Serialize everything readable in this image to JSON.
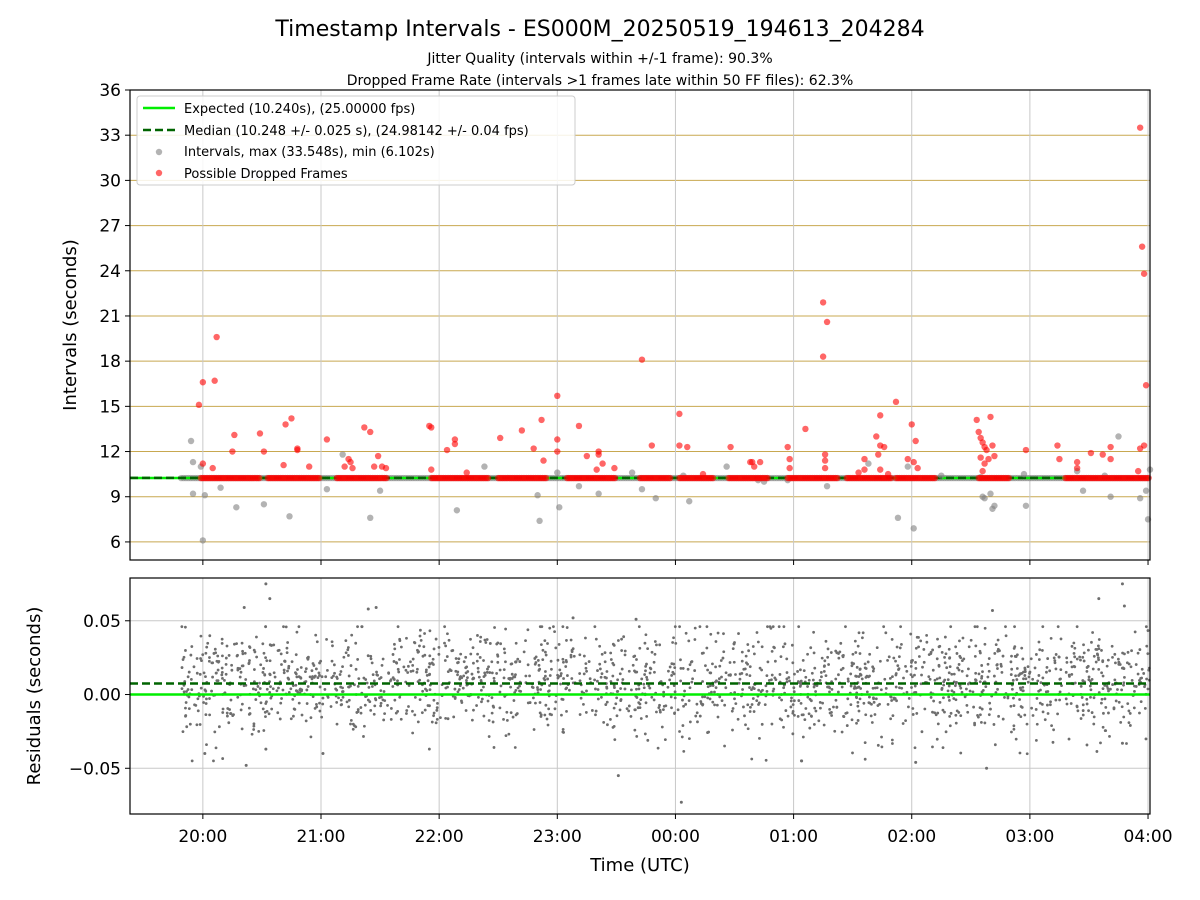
{
  "chart_data": [
    {
      "type": "scatter",
      "title": "Timestamp Intervals - ES000M_20250519_194613_204284",
      "subtitle_lines": [
        "Jitter Quality (intervals within +/-1 frame): 90.3%",
        "Dropped Frame Rate (intervals >1 frames late within 50 FF files): 62.3%"
      ],
      "ylabel": "Intervals (seconds)",
      "ylim": [
        4.8,
        36
      ],
      "yticks": [
        6,
        9,
        12,
        15,
        18,
        21,
        24,
        27,
        30,
        33,
        36
      ],
      "xlim": [
        "19:23",
        "04:01"
      ],
      "xticks": [
        "20:00",
        "21:00",
        "22:00",
        "23:00",
        "00:00",
        "01:00",
        "02:00",
        "03:00",
        "04:00"
      ],
      "grid": true,
      "legend_position": "top-left",
      "legend": [
        "Expected (10.240s), (25.00000 fps)",
        "Median (10.248 +/- 0.025 s), (24.98142 +/- 0.04 fps)",
        "Intervals, max (33.548s), min (6.102s)",
        "Possible Dropped Frames"
      ],
      "expected_interval": 10.24,
      "median_interval": 10.248,
      "series": [
        {
          "name": "Intervals, max (33.548s), min (6.102s)",
          "color": "#808080",
          "points": [
            [
              "19:54",
              12.7
            ],
            [
              "19:55",
              11.3
            ],
            [
              "19:55",
              9.2
            ],
            [
              "19:59",
              11.0
            ],
            [
              "20:00",
              6.1
            ],
            [
              "20:01",
              9.1
            ],
            [
              "20:09",
              9.6
            ],
            [
              "20:17",
              8.3
            ],
            [
              "20:31",
              8.5
            ],
            [
              "20:44",
              7.7
            ],
            [
              "21:03",
              9.5
            ],
            [
              "21:11",
              11.8
            ],
            [
              "21:25",
              7.6
            ],
            [
              "21:30",
              9.4
            ],
            [
              "22:09",
              8.1
            ],
            [
              "22:23",
              11.0
            ],
            [
              "22:50",
              9.1
            ],
            [
              "22:51",
              7.4
            ],
            [
              "23:00",
              10.6
            ],
            [
              "23:01",
              8.3
            ],
            [
              "23:11",
              9.7
            ],
            [
              "23:21",
              9.2
            ],
            [
              "23:38",
              10.6
            ],
            [
              "23:43",
              9.5
            ],
            [
              "23:50",
              8.9
            ],
            [
              "00:04",
              10.4
            ],
            [
              "00:07",
              8.7
            ],
            [
              "00:26",
              11.0
            ],
            [
              "00:42",
              10.1
            ],
            [
              "00:45",
              10.0
            ],
            [
              "00:57",
              10.1
            ],
            [
              "01:17",
              9.7
            ],
            [
              "01:38",
              11.2
            ],
            [
              "01:53",
              7.6
            ],
            [
              "01:58",
              11.0
            ],
            [
              "02:01",
              6.9
            ],
            [
              "02:15",
              10.4
            ],
            [
              "02:35",
              10.3
            ],
            [
              "02:36",
              9.0
            ],
            [
              "02:37",
              8.9
            ],
            [
              "02:40",
              9.2
            ],
            [
              "02:41",
              8.2
            ],
            [
              "02:42",
              8.4
            ],
            [
              "02:57",
              10.5
            ],
            [
              "02:58",
              8.4
            ],
            [
              "03:24",
              10.7
            ],
            [
              "03:27",
              9.4
            ],
            [
              "03:38",
              10.4
            ],
            [
              "03:41",
              9.0
            ],
            [
              "03:45",
              13.0
            ],
            [
              "03:56",
              8.9
            ],
            [
              "03:59",
              9.4
            ],
            [
              "04:00",
              7.5
            ],
            [
              "04:01",
              10.8
            ]
          ]
        },
        {
          "name": "Possible Dropped Frames",
          "color": "#ff0000",
          "points": [
            [
              "19:58",
              15.1
            ],
            [
              "20:00",
              16.6
            ],
            [
              "20:00",
              11.2
            ],
            [
              "20:06",
              16.7
            ],
            [
              "20:07",
              19.6
            ],
            [
              "20:05",
              10.9
            ],
            [
              "20:15",
              12.0
            ],
            [
              "20:16",
              13.1
            ],
            [
              "20:29",
              13.2
            ],
            [
              "20:31",
              12.0
            ],
            [
              "20:41",
              11.1
            ],
            [
              "20:42",
              13.8
            ],
            [
              "20:45",
              14.2
            ],
            [
              "20:48",
              12.1
            ],
            [
              "20:48",
              12.2
            ],
            [
              "20:54",
              11.0
            ],
            [
              "21:03",
              12.8
            ],
            [
              "21:12",
              11.0
            ],
            [
              "21:14",
              11.5
            ],
            [
              "21:15",
              11.3
            ],
            [
              "21:16",
              10.9
            ],
            [
              "21:22",
              13.6
            ],
            [
              "21:25",
              13.3
            ],
            [
              "21:27",
              11.0
            ],
            [
              "21:29",
              11.7
            ],
            [
              "21:31",
              11.0
            ],
            [
              "21:33",
              10.9
            ],
            [
              "21:55",
              13.7
            ],
            [
              "21:56",
              13.6
            ],
            [
              "21:56",
              10.8
            ],
            [
              "22:04",
              12.1
            ],
            [
              "22:08",
              12.8
            ],
            [
              "22:08",
              12.5
            ],
            [
              "22:14",
              10.6
            ],
            [
              "22:31",
              12.9
            ],
            [
              "22:42",
              13.4
            ],
            [
              "22:48",
              12.2
            ],
            [
              "22:52",
              14.1
            ],
            [
              "22:53",
              11.4
            ],
            [
              "23:00",
              15.7
            ],
            [
              "23:00",
              12.8
            ],
            [
              "23:00",
              12.0
            ],
            [
              "23:11",
              13.7
            ],
            [
              "23:15",
              11.7
            ],
            [
              "23:20",
              10.8
            ],
            [
              "23:21",
              12.0
            ],
            [
              "23:21",
              11.8
            ],
            [
              "23:23",
              11.2
            ],
            [
              "23:29",
              10.9
            ],
            [
              "23:43",
              18.1
            ],
            [
              "23:48",
              12.4
            ],
            [
              "00:02",
              14.5
            ],
            [
              "00:02",
              12.4
            ],
            [
              "00:06",
              12.3
            ],
            [
              "00:14",
              10.5
            ],
            [
              "00:28",
              12.3
            ],
            [
              "00:38",
              11.3
            ],
            [
              "00:39",
              11.3
            ],
            [
              "00:40",
              11.0
            ],
            [
              "00:43",
              11.3
            ],
            [
              "00:57",
              12.3
            ],
            [
              "00:58",
              11.5
            ],
            [
              "00:58",
              10.9
            ],
            [
              "01:06",
              13.5
            ],
            [
              "01:15",
              21.9
            ],
            [
              "01:17",
              20.6
            ],
            [
              "01:15",
              18.3
            ],
            [
              "01:16",
              11.8
            ],
            [
              "01:16",
              11.4
            ],
            [
              "01:16",
              10.9
            ],
            [
              "01:33",
              10.6
            ],
            [
              "01:36",
              11.5
            ],
            [
              "01:36",
              10.8
            ],
            [
              "01:42",
              13.0
            ],
            [
              "01:44",
              14.4
            ],
            [
              "01:44",
              12.4
            ],
            [
              "01:46",
              12.3
            ],
            [
              "01:43",
              11.8
            ],
            [
              "01:44",
              10.8
            ],
            [
              "01:48",
              10.5
            ],
            [
              "01:52",
              15.3
            ],
            [
              "01:58",
              11.5
            ],
            [
              "02:00",
              13.8
            ],
            [
              "02:01",
              11.3
            ],
            [
              "02:02",
              12.7
            ],
            [
              "02:03",
              10.9
            ],
            [
              "02:33",
              14.1
            ],
            [
              "02:34",
              13.3
            ],
            [
              "02:35",
              12.9
            ],
            [
              "02:36",
              12.6
            ],
            [
              "02:37",
              12.3
            ],
            [
              "02:38",
              12.1
            ],
            [
              "02:39",
              11.5
            ],
            [
              "02:35",
              11.6
            ],
            [
              "02:37",
              11.2
            ],
            [
              "02:36",
              10.7
            ],
            [
              "02:40",
              14.3
            ],
            [
              "02:41",
              12.4
            ],
            [
              "02:42",
              11.7
            ],
            [
              "02:58",
              12.1
            ],
            [
              "03:14",
              12.4
            ],
            [
              "03:15",
              11.5
            ],
            [
              "03:24",
              11.3
            ],
            [
              "03:24",
              10.9
            ],
            [
              "03:31",
              11.9
            ],
            [
              "03:37",
              11.8
            ],
            [
              "03:41",
              12.3
            ],
            [
              "03:41",
              11.5
            ],
            [
              "03:56",
              33.5
            ],
            [
              "03:57",
              25.6
            ],
            [
              "03:58",
              23.8
            ],
            [
              "03:59",
              16.4
            ],
            [
              "03:58",
              12.4
            ],
            [
              "03:56",
              12.2
            ],
            [
              "03:55",
              10.7
            ]
          ],
          "baseline_runs": [
            [
              "19:59",
              "20:29"
            ],
            [
              "20:33",
              "21:00"
            ],
            [
              "21:08",
              "21:34"
            ],
            [
              "21:56",
              "22:25"
            ],
            [
              "22:30",
              "22:55"
            ],
            [
              "23:05",
              "23:30"
            ],
            [
              "23:42",
              "23:58"
            ],
            [
              "00:02",
              "00:20"
            ],
            [
              "00:27",
              "00:47"
            ],
            [
              "00:57",
              "01:23"
            ],
            [
              "01:27",
              "01:50"
            ],
            [
              "01:52",
              "02:12"
            ],
            [
              "02:34",
              "02:50"
            ],
            [
              "03:18",
              "04:01"
            ]
          ],
          "baseline_value": 10.24
        }
      ]
    },
    {
      "type": "scatter",
      "ylabel": "Residuals (seconds)",
      "xlabel": "Time (UTC)",
      "ylim": [
        -0.081,
        0.079
      ],
      "yticks": [
        "−0.05",
        "0.00",
        "0.05"
      ],
      "xticks": [
        "20:00",
        "21:00",
        "22:00",
        "23:00",
        "00:00",
        "01:00",
        "02:00",
        "03:00",
        "04:00"
      ],
      "xlim": [
        "19:23",
        "04:01"
      ],
      "grid": true,
      "expected_residual": 0.0,
      "median_residual": 0.0075,
      "residual_spread_sd": 0.018,
      "time_range": [
        "19:49",
        "04:01"
      ],
      "point_count": 2000,
      "outliers": [
        [
          "20:32",
          0.075
        ],
        [
          "20:34",
          0.065
        ],
        [
          "20:21",
          0.059
        ],
        [
          "21:24",
          0.058
        ],
        [
          "21:28",
          0.059
        ],
        [
          "23:08",
          0.052
        ],
        [
          "23:40",
          0.051
        ],
        [
          "02:41",
          0.057
        ],
        [
          "03:35",
          0.065
        ],
        [
          "03:47",
          0.075
        ],
        [
          "03:48",
          0.06
        ],
        [
          "20:01",
          -0.04
        ],
        [
          "20:22",
          -0.048
        ],
        [
          "20:32",
          -0.037
        ],
        [
          "21:01",
          -0.04
        ],
        [
          "23:31",
          -0.055
        ],
        [
          "00:03",
          -0.073
        ],
        [
          "01:04",
          -0.045
        ],
        [
          "02:02",
          -0.046
        ],
        [
          "02:38",
          -0.05
        ],
        [
          "03:47",
          -0.033
        ]
      ],
      "colors": {
        "expected": "#00ee00",
        "median": "#006400",
        "points": "#6e6e6e",
        "grid": "#c8c8c8",
        "grid_upper": "#c8a850"
      }
    }
  ]
}
